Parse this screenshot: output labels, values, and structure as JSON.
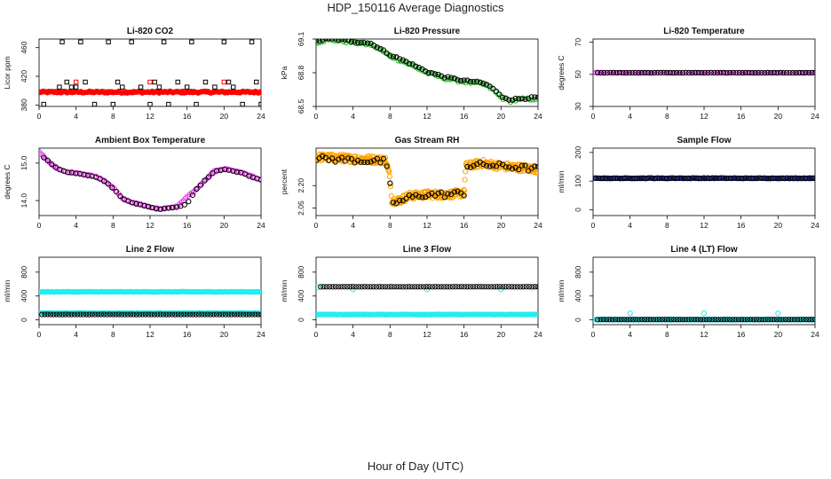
{
  "page": {
    "title": "HDP_150116  Average Diagnostics",
    "xlabel": "Hour of Day (UTC)"
  },
  "colors": {
    "black": "#000000",
    "red": "#ff0000",
    "green": "#22bb22",
    "magenta": "#ee33ee",
    "orange": "#ffa500",
    "blue": "#2222cc",
    "cyan": "#22eeee"
  },
  "chart_data": [
    {
      "id": "co2",
      "type": "scatter",
      "title": "Li-820 CO2",
      "ylabel": "Licor ppm",
      "xlim": [
        0,
        24
      ],
      "ylim": [
        378,
        472
      ],
      "xticks": [
        0,
        4,
        8,
        12,
        16,
        20,
        24
      ],
      "xtick_labels": [
        "0",
        "4",
        "8",
        "12",
        "16",
        "20",
        "24"
      ],
      "yticks": [
        380,
        420,
        460
      ],
      "ytick_labels": [
        "380",
        "420",
        "460"
      ],
      "series": [
        {
          "color": "red",
          "shape": "dot",
          "x_range": [
            0,
            24
          ],
          "n": 160,
          "y": 398,
          "noise": 1.2
        },
        {
          "color": "black",
          "shape": "square",
          "x": [
            0.5,
            2.2,
            2.5,
            3,
            3.5,
            4,
            4.5,
            5,
            6,
            7.5,
            8,
            8.5,
            9,
            10,
            11,
            12,
            12.5,
            13,
            13.5,
            14,
            15,
            16,
            16.5,
            17,
            18,
            19,
            20,
            20.5,
            21,
            22,
            23,
            23.5,
            24
          ],
          "y": [
            381,
            405,
            468,
            412,
            405,
            405,
            468,
            412,
            381,
            468,
            381,
            412,
            405,
            468,
            405,
            381,
            412,
            405,
            468,
            381,
            412,
            405,
            468,
            381,
            412,
            405,
            468,
            412,
            405,
            381,
            468,
            412,
            381
          ]
        },
        {
          "color": "red",
          "shape": "square",
          "x": [
            4,
            12,
            20
          ],
          "y": [
            412,
            412,
            412
          ]
        }
      ]
    },
    {
      "id": "pressure",
      "type": "scatter",
      "title": "Li-820 Pressure",
      "ylabel": "kPa",
      "xlim": [
        0,
        24
      ],
      "ylim": [
        68.5,
        69.1
      ],
      "xticks": [
        0,
        4,
        8,
        12,
        16,
        20,
        24
      ],
      "xtick_labels": [
        "0",
        "4",
        "8",
        "12",
        "16",
        "20",
        "24"
      ],
      "yticks": [
        68.5,
        68.8,
        69.1
      ],
      "ytick_labels": [
        "68.5",
        "68.8",
        "69.1"
      ],
      "series": [
        {
          "color": "green",
          "shape": "circle",
          "curve": [
            [
              0,
              69.07
            ],
            [
              1,
              69.09
            ],
            [
              2,
              69.09
            ],
            [
              4,
              69.07
            ],
            [
              6,
              69.05
            ],
            [
              8,
              68.95
            ],
            [
              10,
              68.88
            ],
            [
              12,
              68.8
            ],
            [
              14,
              68.75
            ],
            [
              16,
              68.72
            ],
            [
              18,
              68.7
            ],
            [
              19,
              68.66
            ],
            [
              20,
              68.58
            ],
            [
              21,
              68.55
            ],
            [
              22,
              68.56
            ],
            [
              24,
              68.57
            ]
          ],
          "n": 90,
          "noise": 0.012
        },
        {
          "color": "black",
          "shape": "circle",
          "curve": [
            [
              0,
              69.08
            ],
            [
              1,
              69.1
            ],
            [
              2,
              69.1
            ],
            [
              4,
              69.08
            ],
            [
              6,
              69.06
            ],
            [
              8,
              68.96
            ],
            [
              10,
              68.89
            ],
            [
              12,
              68.81
            ],
            [
              14,
              68.76
            ],
            [
              16,
              68.73
            ],
            [
              18,
              68.71
            ],
            [
              19,
              68.67
            ],
            [
              20,
              68.59
            ],
            [
              21,
              68.56
            ],
            [
              22,
              68.57
            ],
            [
              24,
              68.58
            ]
          ],
          "n": 70,
          "noise": 0.008
        }
      ]
    },
    {
      "id": "licor_temp",
      "type": "scatter",
      "title": "Li-820 Temperature",
      "ylabel": "degrees C",
      "xlim": [
        0,
        24
      ],
      "ylim": [
        30,
        72
      ],
      "xticks": [
        0,
        4,
        8,
        12,
        16,
        20,
        24
      ],
      "xtick_labels": [
        "0",
        "4",
        "8",
        "12",
        "16",
        "20",
        "24"
      ],
      "yticks": [
        30,
        50,
        70
      ],
      "ytick_labels": [
        "30",
        "50",
        "70"
      ],
      "series": [
        {
          "color": "magenta",
          "shape": "circle",
          "x_range": [
            0,
            24
          ],
          "n": 80,
          "y": 51,
          "noise": 0.1
        },
        {
          "color": "black",
          "shape": "circle",
          "x_range": [
            0.5,
            24
          ],
          "n": 70,
          "y": 51,
          "noise": 0.1
        }
      ]
    },
    {
      "id": "box_temp",
      "type": "scatter",
      "title": "Ambient Box Temperature",
      "ylabel": "degrees C",
      "xlim": [
        0,
        24
      ],
      "ylim": [
        13.6,
        15.4
      ],
      "xticks": [
        0,
        4,
        8,
        12,
        16,
        20,
        24
      ],
      "xtick_labels": [
        "0",
        "4",
        "8",
        "12",
        "16",
        "20",
        "24"
      ],
      "yticks": [
        14.0,
        15.0
      ],
      "ytick_labels": [
        "14.0",
        "15.0"
      ],
      "series": [
        {
          "color": "magenta",
          "shape": "circle",
          "curve": [
            [
              0,
              15.3
            ],
            [
              1,
              15.05
            ],
            [
              2,
              14.85
            ],
            [
              3,
              14.75
            ],
            [
              4,
              14.75
            ],
            [
              5,
              14.7
            ],
            [
              6,
              14.65
            ],
            [
              7,
              14.55
            ],
            [
              8,
              14.35
            ],
            [
              9,
              14.05
            ],
            [
              10,
              13.95
            ],
            [
              11,
              13.9
            ],
            [
              12,
              13.83
            ],
            [
              13,
              13.78
            ],
            [
              14,
              13.8
            ],
            [
              15,
              13.85
            ],
            [
              16,
              14.1
            ],
            [
              17,
              14.3
            ],
            [
              18,
              14.55
            ],
            [
              19,
              14.8
            ],
            [
              20,
              14.85
            ],
            [
              21,
              14.8
            ],
            [
              22,
              14.75
            ],
            [
              23,
              14.65
            ],
            [
              24,
              14.55
            ]
          ],
          "n": 110,
          "noise": 0.012
        },
        {
          "color": "black",
          "shape": "circle",
          "curve": [
            [
              0.5,
              15.15
            ],
            [
              1,
              15.05
            ],
            [
              2,
              14.85
            ],
            [
              3,
              14.75
            ],
            [
              4,
              14.73
            ],
            [
              5,
              14.68
            ],
            [
              6,
              14.63
            ],
            [
              7,
              14.53
            ],
            [
              8,
              14.33
            ],
            [
              9,
              14.05
            ],
            [
              10,
              13.95
            ],
            [
              11,
              13.88
            ],
            [
              12,
              13.82
            ],
            [
              13,
              13.77
            ],
            [
              14,
              13.79
            ],
            [
              15,
              13.83
            ],
            [
              16,
              13.9
            ],
            [
              17,
              14.3
            ],
            [
              18,
              14.55
            ],
            [
              19,
              14.78
            ],
            [
              20,
              14.83
            ],
            [
              21,
              14.78
            ],
            [
              22,
              14.73
            ],
            [
              23,
              14.63
            ],
            [
              24,
              14.55
            ]
          ],
          "n": 55,
          "noise": 0.01
        }
      ]
    },
    {
      "id": "rh",
      "type": "scatter",
      "title": "Gas Stream RH",
      "ylabel": "percent",
      "xlim": [
        0,
        24
      ],
      "ylim": [
        2.0,
        2.45
      ],
      "xticks": [
        0,
        4,
        8,
        12,
        16,
        20,
        24
      ],
      "xtick_labels": [
        "0",
        "4",
        "8",
        "12",
        "16",
        "20",
        "24"
      ],
      "yticks": [
        2.05,
        2.2
      ],
      "ytick_labels": [
        "2.05",
        "2.20"
      ],
      "series": [
        {
          "color": "orange",
          "shape": "circle",
          "curve": [
            [
              0,
              2.39
            ],
            [
              4,
              2.38
            ],
            [
              7.5,
              2.37
            ],
            [
              8,
              2.25
            ],
            [
              8.2,
              2.1
            ],
            [
              9,
              2.1
            ],
            [
              10,
              2.13
            ],
            [
              12,
              2.14
            ],
            [
              14,
              2.14
            ],
            [
              16,
              2.15
            ],
            [
              16.2,
              2.33
            ],
            [
              18,
              2.35
            ],
            [
              20,
              2.33
            ],
            [
              22,
              2.32
            ],
            [
              24,
              2.31
            ]
          ],
          "n": 420,
          "noise": 0.025
        },
        {
          "color": "black",
          "shape": "circle",
          "curve": [
            [
              0,
              2.38
            ],
            [
              4,
              2.37
            ],
            [
              7.5,
              2.36
            ],
            [
              8,
              2.2
            ],
            [
              8.2,
              2.09
            ],
            [
              9,
              2.09
            ],
            [
              10,
              2.12
            ],
            [
              12,
              2.14
            ],
            [
              14,
              2.14
            ],
            [
              16,
              2.15
            ],
            [
              16.2,
              2.33
            ],
            [
              18,
              2.34
            ],
            [
              20,
              2.33
            ],
            [
              22,
              2.32
            ],
            [
              24,
              2.31
            ]
          ],
          "n": 70,
          "noise": 0.02
        }
      ]
    },
    {
      "id": "sample_flow",
      "type": "scatter",
      "title": "Sample Flow",
      "ylabel": "ml/min",
      "xlim": [
        0,
        24
      ],
      "ylim": [
        -20,
        215
      ],
      "xticks": [
        0,
        4,
        8,
        12,
        16,
        20,
        24
      ],
      "xtick_labels": [
        "0",
        "4",
        "8",
        "12",
        "16",
        "20",
        "24"
      ],
      "yticks": [
        0,
        100,
        200
      ],
      "ytick_labels": [
        "0",
        "100",
        "200"
      ],
      "series": [
        {
          "color": "blue",
          "shape": "circle",
          "x_range": [
            0,
            24
          ],
          "n": 140,
          "y": 110,
          "noise": 1
        },
        {
          "color": "black",
          "shape": "circle",
          "x_range": [
            0.3,
            24
          ],
          "n": 80,
          "y": 110,
          "noise": 1
        }
      ]
    },
    {
      "id": "line2",
      "type": "scatter",
      "title": "Line 2 Flow",
      "ylabel": "ml/min",
      "xlim": [
        0,
        24
      ],
      "ylim": [
        -80,
        1050
      ],
      "xticks": [
        0,
        4,
        8,
        12,
        16,
        20,
        24
      ],
      "xtick_labels": [
        "0",
        "4",
        "8",
        "12",
        "16",
        "20",
        "24"
      ],
      "yticks": [
        0,
        400,
        800
      ],
      "ytick_labels": [
        "0",
        "400",
        "800"
      ],
      "series": [
        {
          "color": "cyan",
          "shape": "dot",
          "x_range": [
            0,
            24
          ],
          "n": 160,
          "y": 470,
          "noise": 4
        },
        {
          "color": "cyan",
          "shape": "dot",
          "x_range": [
            0,
            24
          ],
          "n": 120,
          "y": 115,
          "noise": 3
        },
        {
          "color": "black",
          "shape": "circle",
          "x_range": [
            0.3,
            24
          ],
          "n": 75,
          "y": 90,
          "noise": 1
        }
      ]
    },
    {
      "id": "line3",
      "type": "scatter",
      "title": "Line 3 Flow",
      "ylabel": "ml/min",
      "xlim": [
        0,
        24
      ],
      "ylim": [
        -80,
        1050
      ],
      "xticks": [
        0,
        4,
        8,
        12,
        16,
        20,
        24
      ],
      "xtick_labels": [
        "0",
        "4",
        "8",
        "12",
        "16",
        "20",
        "24"
      ],
      "yticks": [
        0,
        400,
        800
      ],
      "ytick_labels": [
        "0",
        "400",
        "800"
      ],
      "series": [
        {
          "color": "cyan",
          "shape": "dot",
          "x_range": [
            0,
            24
          ],
          "n": 160,
          "y": 90,
          "noise": 3
        },
        {
          "color": "cyan",
          "shape": "circle",
          "x": [
            0.2,
            4,
            12,
            20
          ],
          "y": [
            550,
            510,
            510,
            510
          ]
        },
        {
          "color": "black",
          "shape": "circle",
          "x_range": [
            0.5,
            24
          ],
          "n": 75,
          "y": 555,
          "noise": 1
        }
      ]
    },
    {
      "id": "line4",
      "type": "scatter",
      "title": "Line 4 (LT) Flow",
      "ylabel": "ml/min",
      "xlim": [
        0,
        24
      ],
      "ylim": [
        -80,
        1050
      ],
      "xticks": [
        0,
        4,
        8,
        12,
        16,
        20,
        24
      ],
      "xtick_labels": [
        "0",
        "4",
        "8",
        "12",
        "16",
        "20",
        "24"
      ],
      "yticks": [
        0,
        400,
        800
      ],
      "ytick_labels": [
        "0",
        "400",
        "800"
      ],
      "series": [
        {
          "color": "cyan",
          "shape": "circle",
          "x": [
            0,
            4,
            12,
            20
          ],
          "y": [
            10,
            110,
            110,
            110
          ]
        },
        {
          "color": "cyan",
          "shape": "dot",
          "x_range": [
            0,
            24
          ],
          "n": 100,
          "y": 5,
          "noise": 1
        },
        {
          "color": "black",
          "shape": "circle",
          "x_range": [
            0.5,
            24
          ],
          "n": 75,
          "y": 5,
          "noise": 1
        }
      ]
    }
  ]
}
